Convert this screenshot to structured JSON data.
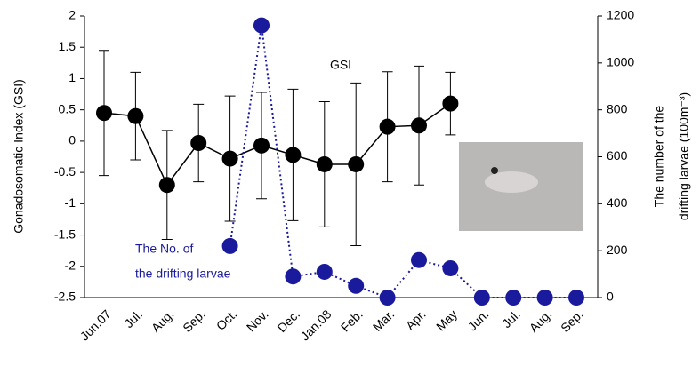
{
  "chart_data": {
    "type": "line",
    "y_label": "Gonadosomatic Index (GSI)",
    "y2_label": [
      "The number of the",
      "drifting larvae (100m⁻³)"
    ],
    "annotations": {
      "gsi": "GSI",
      "larvae": [
        "The No. of",
        "the drifting larvae"
      ]
    },
    "categories": [
      "Jun.07",
      "Jul.",
      "Aug.",
      "Sep.",
      "Oct.",
      "Nov.",
      "Dec.",
      "Jan.08",
      "Feb.",
      "Mar.",
      "Apr.",
      "May",
      "Jun.",
      "Jul.",
      "Aug.",
      "Sep."
    ],
    "series": [
      {
        "color": "#000000",
        "values": [
          0.45,
          0.4,
          -0.7,
          -0.03,
          -0.28,
          -0.07,
          -0.22,
          -0.37,
          -0.37,
          0.23,
          0.25,
          0.6,
          null,
          null,
          null,
          null
        ],
        "errors": [
          1.0,
          0.7,
          0.87,
          0.62,
          1.0,
          0.85,
          1.05,
          1.0,
          1.3,
          0.88,
          0.95,
          0.5,
          null,
          null,
          null,
          null
        ]
      },
      {
        "color": "#1a1a9c",
        "axis": "y2",
        "values": [
          null,
          null,
          null,
          null,
          220,
          1160,
          90,
          110,
          50,
          0,
          160,
          125,
          0,
          0,
          0,
          0
        ]
      }
    ],
    "ylim": [
      -2.5,
      2
    ],
    "yticks": [
      -2.5,
      -2,
      -1.5,
      -1,
      -0.5,
      0,
      0.5,
      1,
      1.5,
      2
    ],
    "y2lim": [
      0,
      1200
    ],
    "y2ticks": [
      0,
      200,
      400,
      600,
      800,
      1000,
      1200
    ]
  }
}
